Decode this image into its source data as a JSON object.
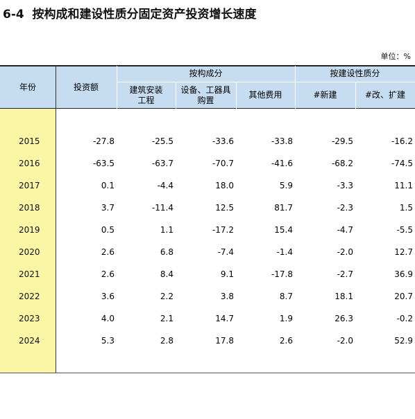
{
  "title": "6-4  按构成和建设性质分固定资产投资增长速度",
  "unit": "单位：%",
  "table": {
    "head": {
      "year": "年份",
      "total": "投资额",
      "group1": "按构成分",
      "group2": "按建设性质分",
      "columns": [
        "建筑安装工程",
        "设备、工器具购置",
        "其他费用",
        "#新建",
        "#改、扩建"
      ]
    },
    "rows": [
      [
        "2015",
        "-27.8",
        "-25.5",
        "-33.6",
        "-33.8",
        "-29.5",
        "-16.2"
      ],
      [
        "2016",
        "-63.5",
        "-63.7",
        "-70.7",
        "-41.6",
        "-68.2",
        "-74.5"
      ],
      [
        "2017",
        "0.1",
        "-4.4",
        "18.0",
        "5.9",
        "-3.3",
        "11.1"
      ],
      [
        "2018",
        "3.7",
        "-11.4",
        "12.5",
        "81.7",
        "-2.3",
        "1.5"
      ],
      [
        "2019",
        "0.5",
        "1.1",
        "-17.2",
        "15.4",
        "-4.7",
        "-5.5"
      ],
      [
        "2020",
        "2.6",
        "6.8",
        "-7.4",
        "-1.4",
        "-2.0",
        "12.7"
      ],
      [
        "2021",
        "2.6",
        "8.4",
        "9.1",
        "-17.8",
        "-2.7",
        "36.9"
      ],
      [
        "2022",
        "3.6",
        "2.2",
        "3.8",
        "8.7",
        "18.1",
        "20.7"
      ],
      [
        "2023",
        "4.0",
        "2.1",
        "14.7",
        "1.9",
        "26.3",
        "-0.2"
      ],
      [
        "2024",
        "5.3",
        "2.8",
        "17.8",
        "2.6",
        "-2.0",
        "52.9"
      ]
    ]
  }
}
